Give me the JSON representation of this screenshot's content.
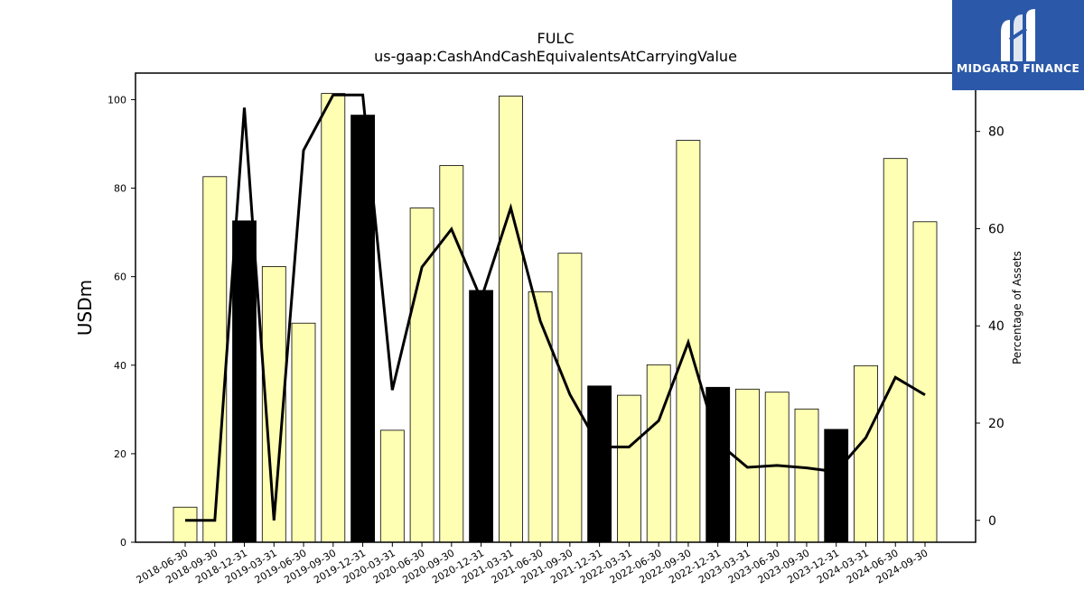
{
  "chart_data": {
    "type": "bar",
    "title": "FULC",
    "subtitle": "us-gaap:CashAndCashEquivalentsAtCarryingValue",
    "ylabel": "USDm",
    "y2label": "Percentage of Assets",
    "ylim": [
      0,
      106
    ],
    "y2lim": [
      -4.5,
      92
    ],
    "yticks": [
      0,
      20,
      40,
      60,
      80,
      100
    ],
    "y2ticks": [
      0,
      20,
      40,
      60,
      80
    ],
    "categories": [
      "2018-06-30",
      "2018-09-30",
      "2018-12-31",
      "2019-03-31",
      "2019-06-30",
      "2019-09-30",
      "2019-12-31",
      "2020-03-31",
      "2020-06-30",
      "2020-09-30",
      "2020-12-31",
      "2021-03-31",
      "2021-06-30",
      "2021-09-30",
      "2021-12-31",
      "2022-03-31",
      "2022-06-30",
      "2022-09-30",
      "2022-12-31",
      "2023-03-31",
      "2023-06-30",
      "2023-09-30",
      "2023-12-31",
      "2024-03-31",
      "2024-06-30",
      "2024-09-30"
    ],
    "series": [
      {
        "kind": "bar",
        "values": [
          7.9,
          82.6,
          72.6,
          62.3,
          49.5,
          101.4,
          96.5,
          25.3,
          75.5,
          85.1,
          56.9,
          100.8,
          56.6,
          65.3,
          35.3,
          33.2,
          40.1,
          90.8,
          35.0,
          34.6,
          33.9,
          30.1,
          25.5,
          39.9,
          86.7,
          72.4
        ],
        "colors": [
          "#ffffb3",
          "#ffffb3",
          "#000000",
          "#ffffb3",
          "#ffffb3",
          "#ffffb3",
          "#000000",
          "#ffffb3",
          "#ffffb3",
          "#ffffb3",
          "#000000",
          "#ffffb3",
          "#ffffb3",
          "#ffffb3",
          "#000000",
          "#ffffb3",
          "#ffffb3",
          "#ffffb3",
          "#000000",
          "#ffffb3",
          "#ffffb3",
          "#ffffb3",
          "#000000",
          "#ffffb3",
          "#ffffb3",
          "#ffffb3"
        ]
      },
      {
        "kind": "line",
        "axis": "right",
        "values": [
          0,
          0,
          84.9,
          0,
          76.1,
          87.5,
          87.5,
          26.8,
          52.1,
          59.9,
          45.5,
          64.3,
          41.0,
          25.9,
          15.1,
          15.1,
          20.5,
          36.6,
          16.0,
          10.9,
          11.3,
          10.8,
          10.0,
          17.0,
          29.4,
          25.8
        ],
        "color": "#000000"
      }
    ]
  },
  "logo": {
    "brand": "MIDGARD FINANCE",
    "bg_color": "#2b58a8",
    "icon": "midgard-logo-icon"
  }
}
